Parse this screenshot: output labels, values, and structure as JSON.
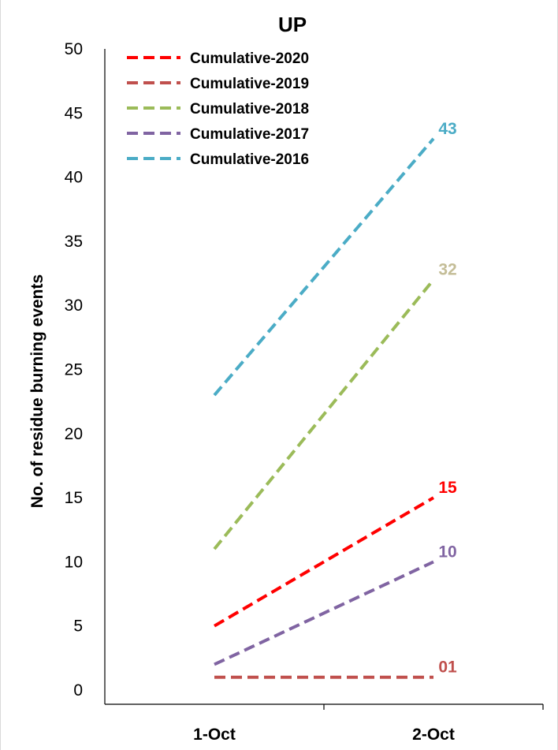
{
  "chart_data": {
    "type": "line",
    "title": "UP",
    "xlabel": "",
    "ylabel": "No. of residue burning events",
    "categories": [
      "1-Oct",
      "2-Oct"
    ],
    "ylim": [
      0,
      50
    ],
    "yticks": [
      0,
      5,
      10,
      15,
      20,
      25,
      30,
      35,
      40,
      45,
      50
    ],
    "legend_position": "top-left",
    "grid": false,
    "series": [
      {
        "name": "Cumulative-2020",
        "values": [
          5,
          15
        ],
        "color": "#ff0000",
        "end_label": "15",
        "label_color": "#ff0000"
      },
      {
        "name": "Cumulative-2019",
        "values": [
          1,
          1
        ],
        "color": "#c0504d",
        "end_label": "01",
        "label_color": "#c0504d"
      },
      {
        "name": "Cumulative-2018",
        "values": [
          11,
          32
        ],
        "color": "#9bbb59",
        "end_label": "32",
        "label_color": "#c4bd97"
      },
      {
        "name": "Cumulative-2017",
        "values": [
          2,
          10
        ],
        "color": "#8064a2",
        "end_label": "10",
        "label_color": "#8064a2"
      },
      {
        "name": "Cumulative-2016",
        "values": [
          23,
          43
        ],
        "color": "#4bacc6",
        "end_label": "43",
        "label_color": "#4bacc6"
      }
    ]
  }
}
